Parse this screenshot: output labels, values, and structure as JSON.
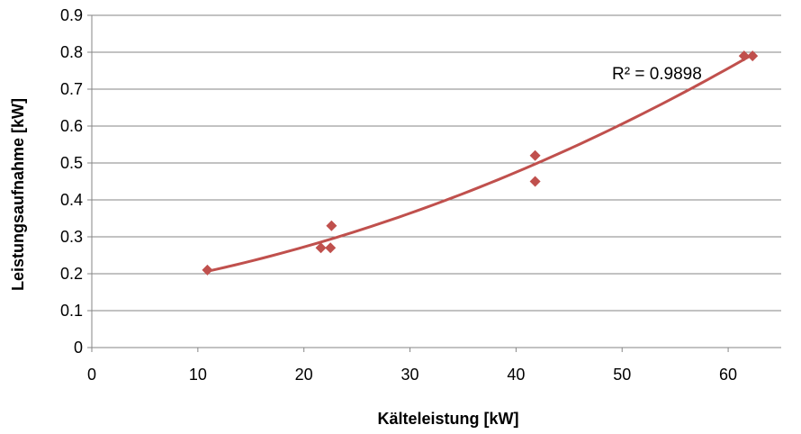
{
  "chart_data": {
    "type": "scatter",
    "title": "",
    "xlabel": "Kälteleistung [kW]",
    "ylabel": "Leistungsaufnahme [kW]",
    "xlim": [
      0,
      65
    ],
    "ylim": [
      0,
      0.9
    ],
    "x_ticks": [
      "0",
      "10",
      "20",
      "30",
      "40",
      "50",
      "60"
    ],
    "y_ticks": [
      "0",
      "0.1",
      "0.2",
      "0.3",
      "0.4",
      "0.5",
      "0.6",
      "0.7",
      "0.8",
      "0.9"
    ],
    "grid": "horizontal",
    "legend": "none",
    "series": [
      {
        "marker": "diamond",
        "color": "#c0504d",
        "points": [
          {
            "x": 10.9,
            "y": 0.21
          },
          {
            "x": 21.6,
            "y": 0.27
          },
          {
            "x": 22.5,
            "y": 0.27
          },
          {
            "x": 22.6,
            "y": 0.33
          },
          {
            "x": 41.8,
            "y": 0.45
          },
          {
            "x": 41.8,
            "y": 0.52
          },
          {
            "x": 61.5,
            "y": 0.79
          },
          {
            "x": 62.3,
            "y": 0.79
          }
        ]
      }
    ],
    "trendline": {
      "type": "polynomial",
      "color": "#c0504d",
      "x_range": [
        10.9,
        62.3
      ],
      "points": [
        {
          "x": 10.9,
          "y": 0.21
        },
        {
          "x": 22.0,
          "y": 0.285
        },
        {
          "x": 30.0,
          "y": 0.36
        },
        {
          "x": 40.0,
          "y": 0.476
        },
        {
          "x": 50.0,
          "y": 0.613
        },
        {
          "x": 62.3,
          "y": 0.79
        }
      ],
      "r_squared_label": "R² = 0.9898"
    }
  }
}
